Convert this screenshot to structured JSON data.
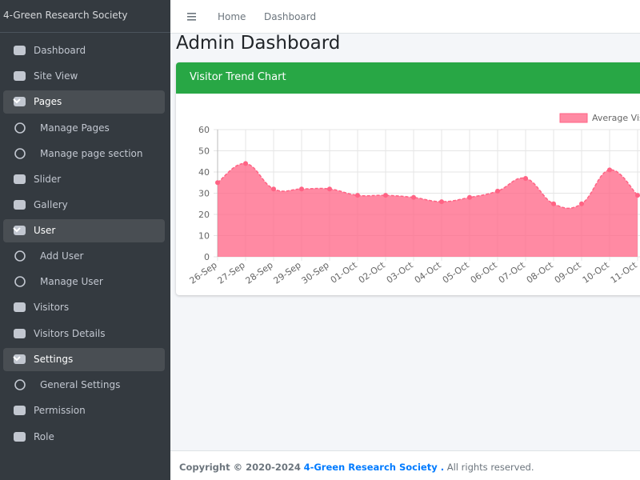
{
  "brand": "4-Green Research Society",
  "navbar": {
    "links": [
      "Home",
      "Dashboard"
    ]
  },
  "sidebar": {
    "items": [
      {
        "label": "Dashboard"
      },
      {
        "label": "Site View"
      },
      {
        "label": "Pages"
      },
      {
        "label": "Manage Pages"
      },
      {
        "label": "Manage page section"
      },
      {
        "label": "Slider"
      },
      {
        "label": "Gallery"
      },
      {
        "label": "User"
      },
      {
        "label": "Add User"
      },
      {
        "label": "Manage User"
      },
      {
        "label": "Visitors"
      },
      {
        "label": "Visitors Details"
      },
      {
        "label": "Settings"
      },
      {
        "label": "General Settings"
      },
      {
        "label": "Permission"
      },
      {
        "label": "Role"
      }
    ]
  },
  "page_title": "Admin Dashboard",
  "card_title": "Visitor Trend Chart",
  "chart_data": {
    "type": "line",
    "categories": [
      "26-Sep",
      "27-Sep",
      "28-Sep",
      "29-Sep",
      "30-Sep",
      "01-Oct",
      "02-Oct",
      "03-Oct",
      "04-Oct",
      "05-Oct",
      "06-Oct",
      "07-Oct",
      "08-Oct",
      "09-Oct",
      "10-Oct",
      "11-Oct"
    ],
    "series": [
      {
        "name": "Average Visitors",
        "color": "#ff6384",
        "values": [
          35,
          44,
          32,
          32,
          32,
          29,
          29,
          28,
          26,
          28,
          31,
          37,
          25,
          25,
          41,
          29
        ]
      }
    ],
    "ylim": [
      0,
      60
    ],
    "yticks": [
      0,
      10,
      20,
      30,
      40,
      50,
      60
    ],
    "grid": true,
    "fill": true
  },
  "footer": {
    "copyright": "Copyright © 2020-2024",
    "org": "4-Green Research Society .",
    "rights": "All rights reserved."
  }
}
